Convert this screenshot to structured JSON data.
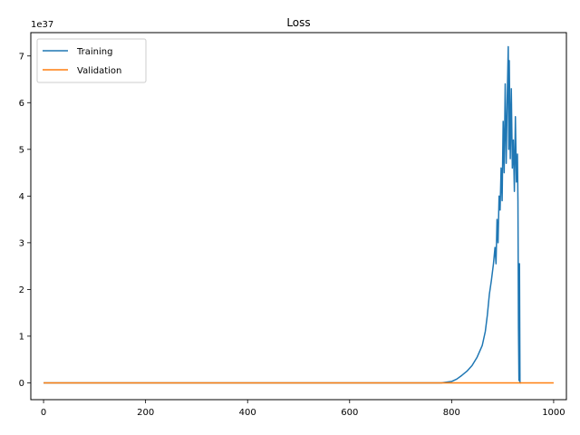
{
  "chart_data": {
    "type": "line",
    "title": "Loss",
    "xlabel": "",
    "ylabel": "",
    "xlim": [
      -25,
      1025
    ],
    "ylim": [
      -0.36,
      7.5
    ],
    "y_scale_label": "1e37",
    "grid": false,
    "legend_position": "upper-left",
    "xticks": [
      0,
      200,
      400,
      600,
      800,
      1000
    ],
    "xtick_labels": [
      "0",
      "200",
      "400",
      "600",
      "800",
      "1000"
    ],
    "yticks": [
      0,
      1,
      2,
      3,
      4,
      5,
      6,
      7
    ],
    "ytick_labels": [
      "0",
      "1",
      "2",
      "3",
      "4",
      "5",
      "6",
      "7"
    ],
    "series": [
      {
        "name": "Training",
        "color": "#1f77b4",
        "x": [
          0,
          780,
          800,
          810,
          820,
          830,
          840,
          850,
          860,
          866,
          870,
          874,
          878,
          882,
          885,
          887,
          889,
          891,
          893,
          895,
          897,
          899,
          901,
          903,
          905,
          907,
          909,
          911,
          912,
          913,
          915,
          917,
          919,
          921,
          923,
          925,
          927,
          929,
          930,
          931,
          932,
          933,
          934,
          935,
          936
        ],
        "y": [
          0,
          0.0,
          0.03,
          0.08,
          0.16,
          0.25,
          0.37,
          0.55,
          0.8,
          1.1,
          1.45,
          1.9,
          2.2,
          2.55,
          2.9,
          2.55,
          3.5,
          3.0,
          4.0,
          3.7,
          4.6,
          3.9,
          5.6,
          4.5,
          6.4,
          4.7,
          6.1,
          7.2,
          5.0,
          6.9,
          4.8,
          6.3,
          4.6,
          5.2,
          4.1,
          5.7,
          4.3,
          4.9,
          3.9,
          1.2,
          0.05,
          2.55,
          0.0,
          0.0,
          0.0
        ]
      },
      {
        "name": "Validation",
        "color": "#ff7f0e",
        "x": [
          0,
          1000
        ],
        "y": [
          0,
          0
        ]
      }
    ]
  }
}
